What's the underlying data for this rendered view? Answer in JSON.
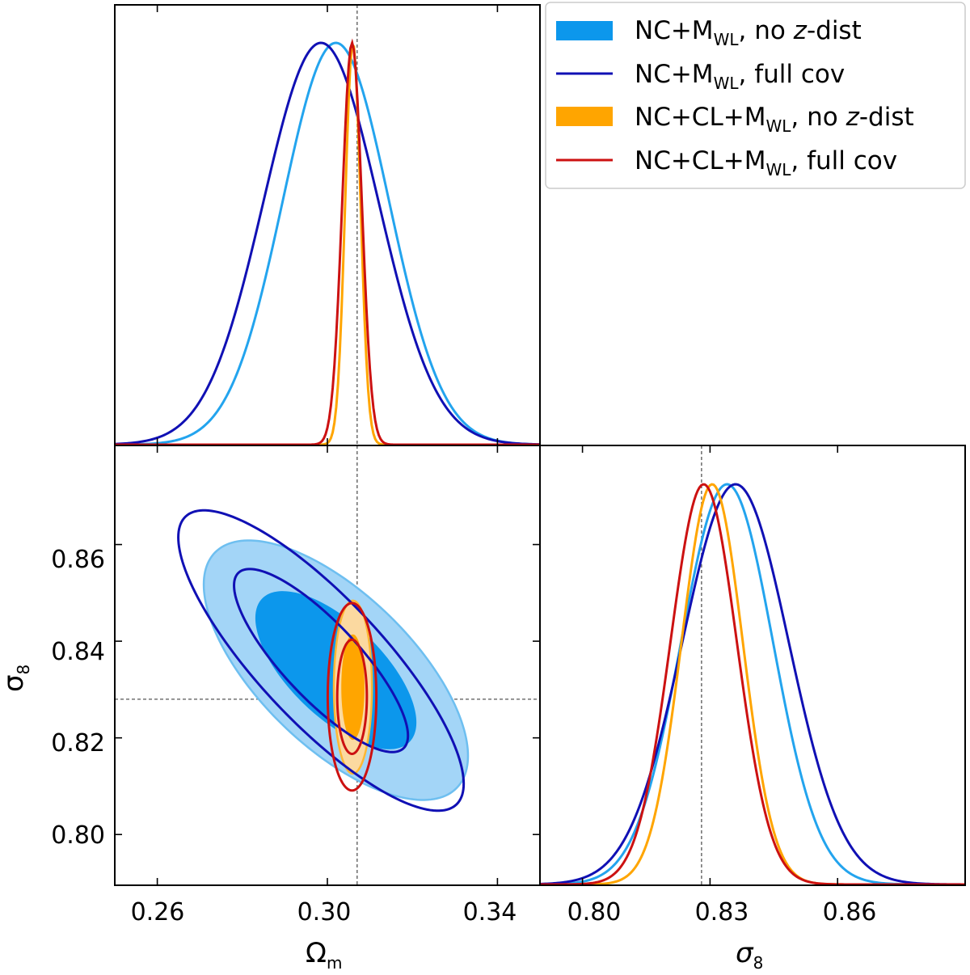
{
  "chart_data": {
    "type": "corner",
    "parameters": {
      "omega_m": {
        "label": "Ω",
        "label_sub": "m",
        "ticks": [
          "0.26",
          "0.30",
          "0.34"
        ],
        "range": [
          0.25,
          0.35
        ]
      },
      "sigma_8": {
        "label": "σ",
        "label_sub": "8",
        "ticks_x": [
          "0.80",
          "0.83",
          "0.86"
        ],
        "ticks_y": [
          "0.80",
          "0.82",
          "0.84",
          "0.86"
        ],
        "range": [
          0.79,
          0.89
        ],
        "range_y": [
          0.7895,
          0.8805
        ]
      }
    },
    "reference": {
      "omega_m": 0.307,
      "sigma_8": 0.828
    },
    "series": [
      {
        "legend": {
          "main": "NC+M",
          "sub": "WL",
          "tail": ", no ",
          "italic": "z",
          "end": "-dist"
        },
        "style": "filled",
        "color": "#0c97ec",
        "color_outer": "#a3d5f7",
        "edge_outer": "#6ebff0",
        "omega_m_mean": 0.302,
        "omega_m_sigma": 0.0125,
        "sigma_8_mean": 0.834,
        "sigma_8_sigma": 0.0108,
        "correlation": -0.66
      },
      {
        "legend": {
          "main": "NC+M",
          "sub": "WL",
          "tail": ", full cov",
          "italic": "",
          "end": ""
        },
        "style": "line",
        "color": "#1010b4",
        "omega_m_mean": 0.2985,
        "omega_m_sigma": 0.0135,
        "sigma_8_mean": 0.836,
        "sigma_8_sigma": 0.0125,
        "correlation": -0.82
      },
      {
        "legend": {
          "main": "NC+CL+M",
          "sub": "WL",
          "tail": ", no ",
          "italic": "z",
          "end": "-dist"
        },
        "style": "filled",
        "color": "#ffa500",
        "color_outer": "#fbd9a0",
        "edge_outer": "#ffb733",
        "omega_m_mean": 0.306,
        "omega_m_sigma": 0.0018,
        "sigma_8_mean": 0.8305,
        "sigma_8_sigma": 0.0072,
        "correlation": 0.0
      },
      {
        "legend": {
          "main": "NC+CL+M",
          "sub": "WL",
          "tail": ", full cov",
          "italic": "",
          "end": ""
        },
        "style": "line",
        "color": "#cc1111",
        "omega_m_mean": 0.3058,
        "omega_m_sigma": 0.0023,
        "sigma_8_mean": 0.8285,
        "sigma_8_sigma": 0.0078,
        "correlation": 0.0
      }
    ]
  }
}
